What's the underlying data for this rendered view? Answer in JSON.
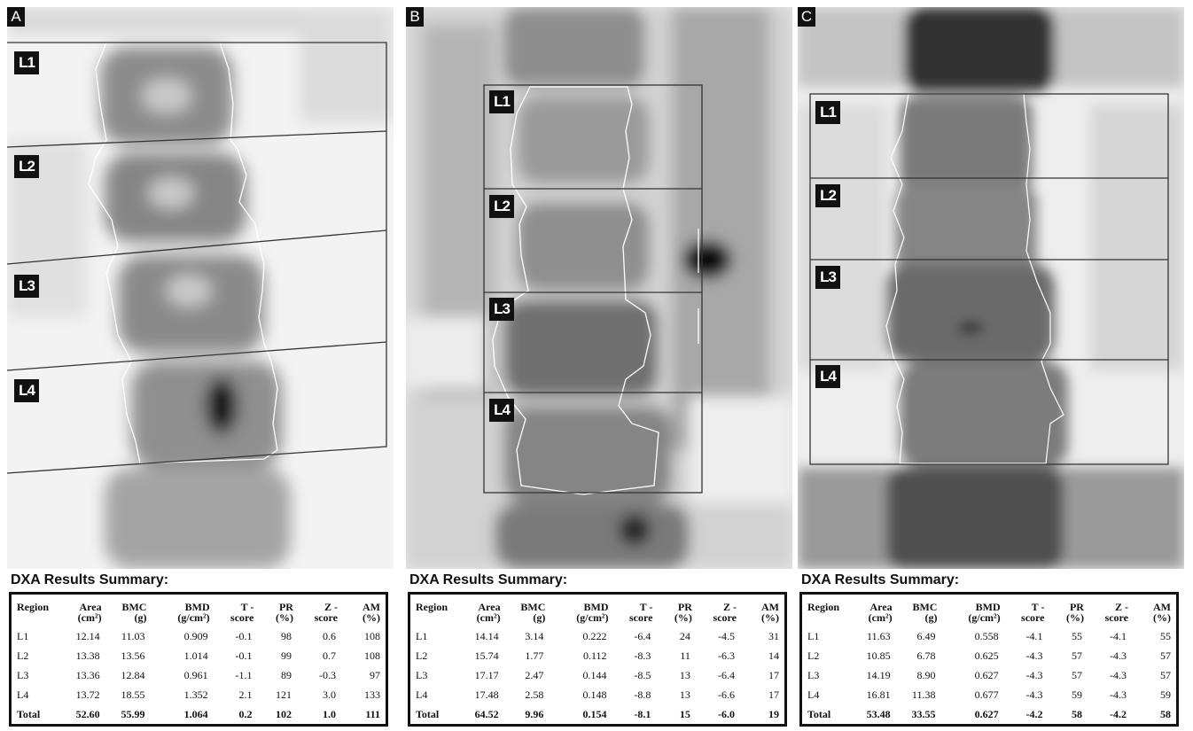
{
  "panels": [
    {
      "letter": "A",
      "levels": [
        "L1",
        "L2",
        "L3",
        "L4"
      ],
      "summary_title": "DXA Results Summary:",
      "headers": [
        "Region",
        "Area (cm²)",
        "BMC (g)",
        "BMD (g/cm²)",
        "T - score",
        "PR (%)",
        "Z - score",
        "AM (%)"
      ],
      "rows": [
        [
          "L1",
          "12.14",
          "11.03",
          "0.909",
          "-0.1",
          "98",
          "0.6",
          "108"
        ],
        [
          "L2",
          "13.38",
          "13.56",
          "1.014",
          "-0.1",
          "99",
          "0.7",
          "108"
        ],
        [
          "L3",
          "13.36",
          "12.84",
          "0.961",
          "-1.1",
          "89",
          "-0.3",
          "97"
        ],
        [
          "L4",
          "13.72",
          "18.55",
          "1.352",
          "2.1",
          "121",
          "3.0",
          "133"
        ]
      ],
      "total": [
        "Total",
        "52.60",
        "55.99",
        "1.064",
        "0.2",
        "102",
        "1.0",
        "111"
      ]
    },
    {
      "letter": "B",
      "levels": [
        "L1",
        "L2",
        "L3",
        "L4"
      ],
      "summary_title": "DXA Results Summary:",
      "headers": [
        "Region",
        "Area (cm²)",
        "BMC (g)",
        "BMD (g/cm²)",
        "T - score",
        "PR (%)",
        "Z - score",
        "AM (%)"
      ],
      "rows": [
        [
          "L1",
          "14.14",
          "3.14",
          "0.222",
          "-6.4",
          "24",
          "-4.5",
          "31"
        ],
        [
          "L2",
          "15.74",
          "1.77",
          "0.112",
          "-8.3",
          "11",
          "-6.3",
          "14"
        ],
        [
          "L3",
          "17.17",
          "2.47",
          "0.144",
          "-8.5",
          "13",
          "-6.4",
          "17"
        ],
        [
          "L4",
          "17.48",
          "2.58",
          "0.148",
          "-8.8",
          "13",
          "-6.6",
          "17"
        ]
      ],
      "total": [
        "Total",
        "64.52",
        "9.96",
        "0.154",
        "-8.1",
        "15",
        "-6.0",
        "19"
      ]
    },
    {
      "letter": "C",
      "levels": [
        "L1",
        "L2",
        "L3",
        "L4"
      ],
      "summary_title": "DXA Results Summary:",
      "headers": [
        "Region",
        "Area (cm²)",
        "BMC (g)",
        "BMD (g/cm²)",
        "T - score",
        "PR (%)",
        "Z - score",
        "AM (%)"
      ],
      "rows": [
        [
          "L1",
          "11.63",
          "6.49",
          "0.558",
          "-4.1",
          "55",
          "-4.1",
          "55"
        ],
        [
          "L2",
          "10.85",
          "6.78",
          "0.625",
          "-4.3",
          "57",
          "-4.3",
          "57"
        ],
        [
          "L3",
          "14.19",
          "8.90",
          "0.627",
          "-4.3",
          "57",
          "-4.3",
          "57"
        ],
        [
          "L4",
          "16.81",
          "11.38",
          "0.677",
          "-4.3",
          "59",
          "-4.3",
          "59"
        ]
      ],
      "total": [
        "Total",
        "53.48",
        "33.55",
        "0.627",
        "-4.2",
        "58",
        "-4.2",
        "58"
      ]
    }
  ]
}
